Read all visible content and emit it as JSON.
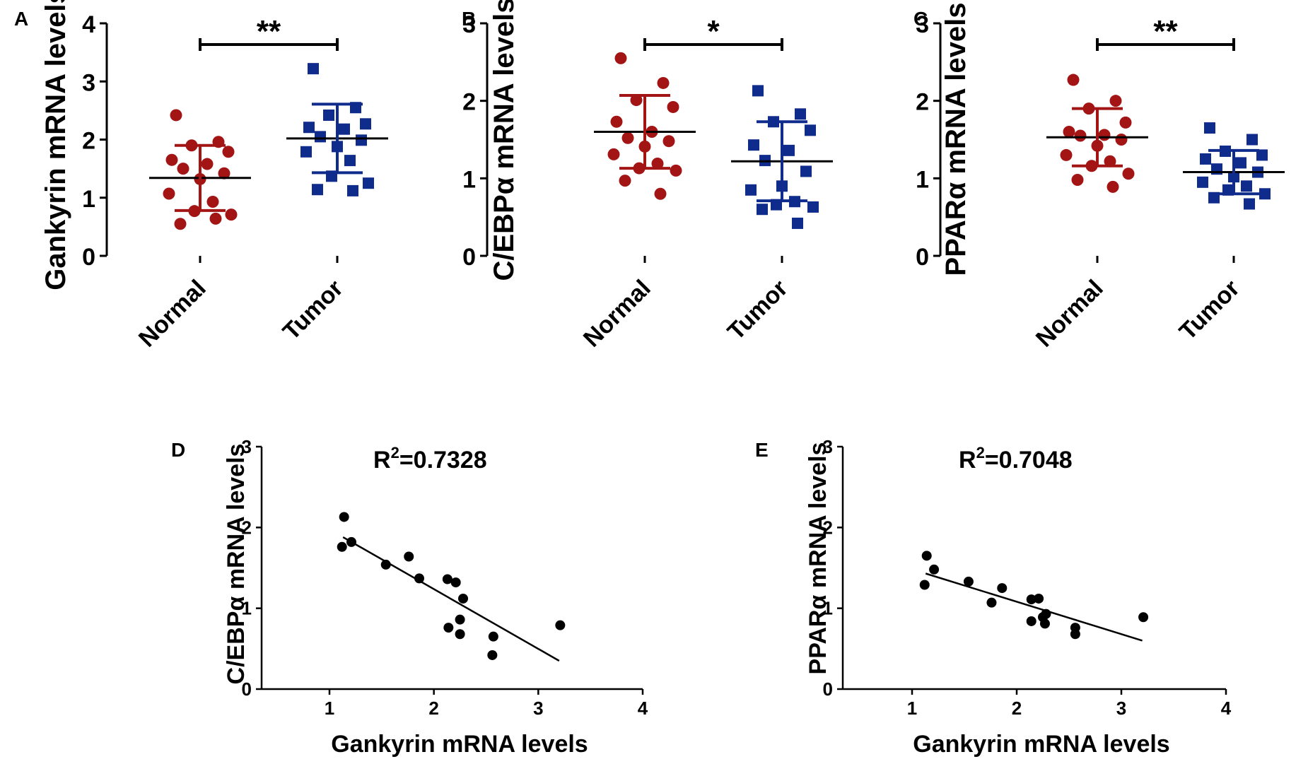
{
  "colors": {
    "normal": "#a31515",
    "tumor": "#0f2b8c",
    "scatter": "#000000",
    "axis": "#000000"
  },
  "chart_data": [
    {
      "panel": "A",
      "type": "scatter",
      "subtype": "dot-plot",
      "ylabel": "Gankyrin mRNA levels",
      "ylim": [
        0,
        4
      ],
      "yticks": [
        0,
        1,
        2,
        3,
        4
      ],
      "categories": [
        "Normal",
        "Tumor"
      ],
      "series": [
        {
          "name": "Normal",
          "values": [
            2.42,
            1.96,
            1.9,
            1.79,
            1.65,
            1.58,
            1.5,
            1.42,
            1.32,
            1.07,
            0.93,
            0.77,
            0.71,
            0.55,
            0.64
          ],
          "mean": 1.34,
          "sd": 0.56
        },
        {
          "name": "Tumor",
          "values": [
            3.22,
            2.55,
            2.42,
            2.27,
            2.21,
            2.18,
            2.05,
            1.99,
            1.88,
            1.79,
            1.64,
            1.37,
            1.25,
            1.14,
            1.12
          ],
          "mean": 2.02,
          "sd": 0.59
        }
      ],
      "significance": "**"
    },
    {
      "panel": "B",
      "type": "scatter",
      "subtype": "dot-plot",
      "ylabel": "C/EBPα  mRNA levels",
      "ylim": [
        0,
        3
      ],
      "yticks": [
        0,
        1,
        2,
        3
      ],
      "categories": [
        "Normal",
        "Tumor"
      ],
      "series": [
        {
          "name": "Normal",
          "values": [
            2.55,
            2.23,
            2.01,
            1.92,
            1.73,
            1.6,
            1.52,
            1.48,
            1.41,
            1.31,
            1.19,
            1.13,
            1.1,
            0.97,
            0.8
          ],
          "mean": 1.6,
          "sd": 0.47
        },
        {
          "name": "Tumor",
          "values": [
            2.13,
            1.83,
            1.73,
            1.62,
            1.43,
            1.36,
            1.23,
            1.09,
            0.9,
            0.85,
            0.7,
            0.66,
            0.63,
            0.6,
            0.42
          ],
          "mean": 1.22,
          "sd": 0.51
        }
      ],
      "significance": "*"
    },
    {
      "panel": "C",
      "type": "scatter",
      "subtype": "dot-plot",
      "ylabel": "PPARα  mRNA levels",
      "ylim": [
        0,
        3
      ],
      "yticks": [
        0,
        1,
        2,
        3
      ],
      "categories": [
        "Normal",
        "Tumor"
      ],
      "series": [
        {
          "name": "Normal",
          "values": [
            2.27,
            2.0,
            1.9,
            1.72,
            1.6,
            1.56,
            1.55,
            1.5,
            1.42,
            1.3,
            1.22,
            1.16,
            1.06,
            0.98,
            0.89
          ],
          "mean": 1.53,
          "sd": 0.37
        },
        {
          "name": "Tumor",
          "values": [
            1.65,
            1.5,
            1.35,
            1.3,
            1.25,
            1.2,
            1.12,
            1.08,
            1.02,
            0.95,
            0.9,
            0.85,
            0.8,
            0.75,
            0.67
          ],
          "mean": 1.08,
          "sd": 0.28
        }
      ],
      "significance": "**"
    },
    {
      "panel": "D",
      "type": "scatter",
      "xlabel": "Gankyrin mRNA levels",
      "ylabel": "C/EBPα  mRNA levels",
      "xlim": [
        0.5,
        4
      ],
      "ylim": [
        0,
        3
      ],
      "xticks": [
        1,
        2,
        3,
        4
      ],
      "yticks": [
        0,
        1,
        2,
        3
      ],
      "annotation": {
        "prefix": "R",
        "sup": "2",
        "suffix": "=0.7328"
      },
      "points": [
        [
          1.14,
          2.13
        ],
        [
          1.12,
          1.76
        ],
        [
          1.21,
          1.82
        ],
        [
          1.54,
          1.54
        ],
        [
          1.76,
          1.64
        ],
        [
          1.86,
          1.37
        ],
        [
          2.13,
          1.36
        ],
        [
          2.21,
          1.32
        ],
        [
          2.28,
          1.12
        ],
        [
          2.25,
          0.86
        ],
        [
          2.14,
          0.76
        ],
        [
          2.25,
          0.68
        ],
        [
          2.57,
          0.65
        ],
        [
          2.56,
          0.42
        ],
        [
          3.21,
          0.79
        ]
      ],
      "fit": {
        "x": [
          1.13,
          3.2
        ],
        "y": [
          1.88,
          0.35
        ]
      }
    },
    {
      "panel": "E",
      "type": "scatter",
      "xlabel": "Gankyrin mRNA levels",
      "ylabel": "PPARα  mRNA levels",
      "xlim": [
        0.5,
        4
      ],
      "ylim": [
        0,
        3
      ],
      "xticks": [
        1,
        2,
        3,
        4
      ],
      "yticks": [
        0,
        1,
        2,
        3
      ],
      "annotation": {
        "prefix": "R",
        "sup": "2",
        "suffix": "=0.7048"
      },
      "points": [
        [
          1.14,
          1.65
        ],
        [
          1.21,
          1.48
        ],
        [
          1.12,
          1.29
        ],
        [
          1.54,
          1.33
        ],
        [
          1.86,
          1.25
        ],
        [
          1.76,
          1.07
        ],
        [
          2.14,
          1.11
        ],
        [
          2.21,
          1.12
        ],
        [
          2.28,
          0.93
        ],
        [
          2.25,
          0.89
        ],
        [
          2.14,
          0.84
        ],
        [
          2.27,
          0.81
        ],
        [
          2.56,
          0.76
        ],
        [
          2.56,
          0.68
        ],
        [
          3.21,
          0.89
        ]
      ],
      "fit": {
        "x": [
          1.13,
          3.2
        ],
        "y": [
          1.43,
          0.6
        ]
      }
    }
  ]
}
